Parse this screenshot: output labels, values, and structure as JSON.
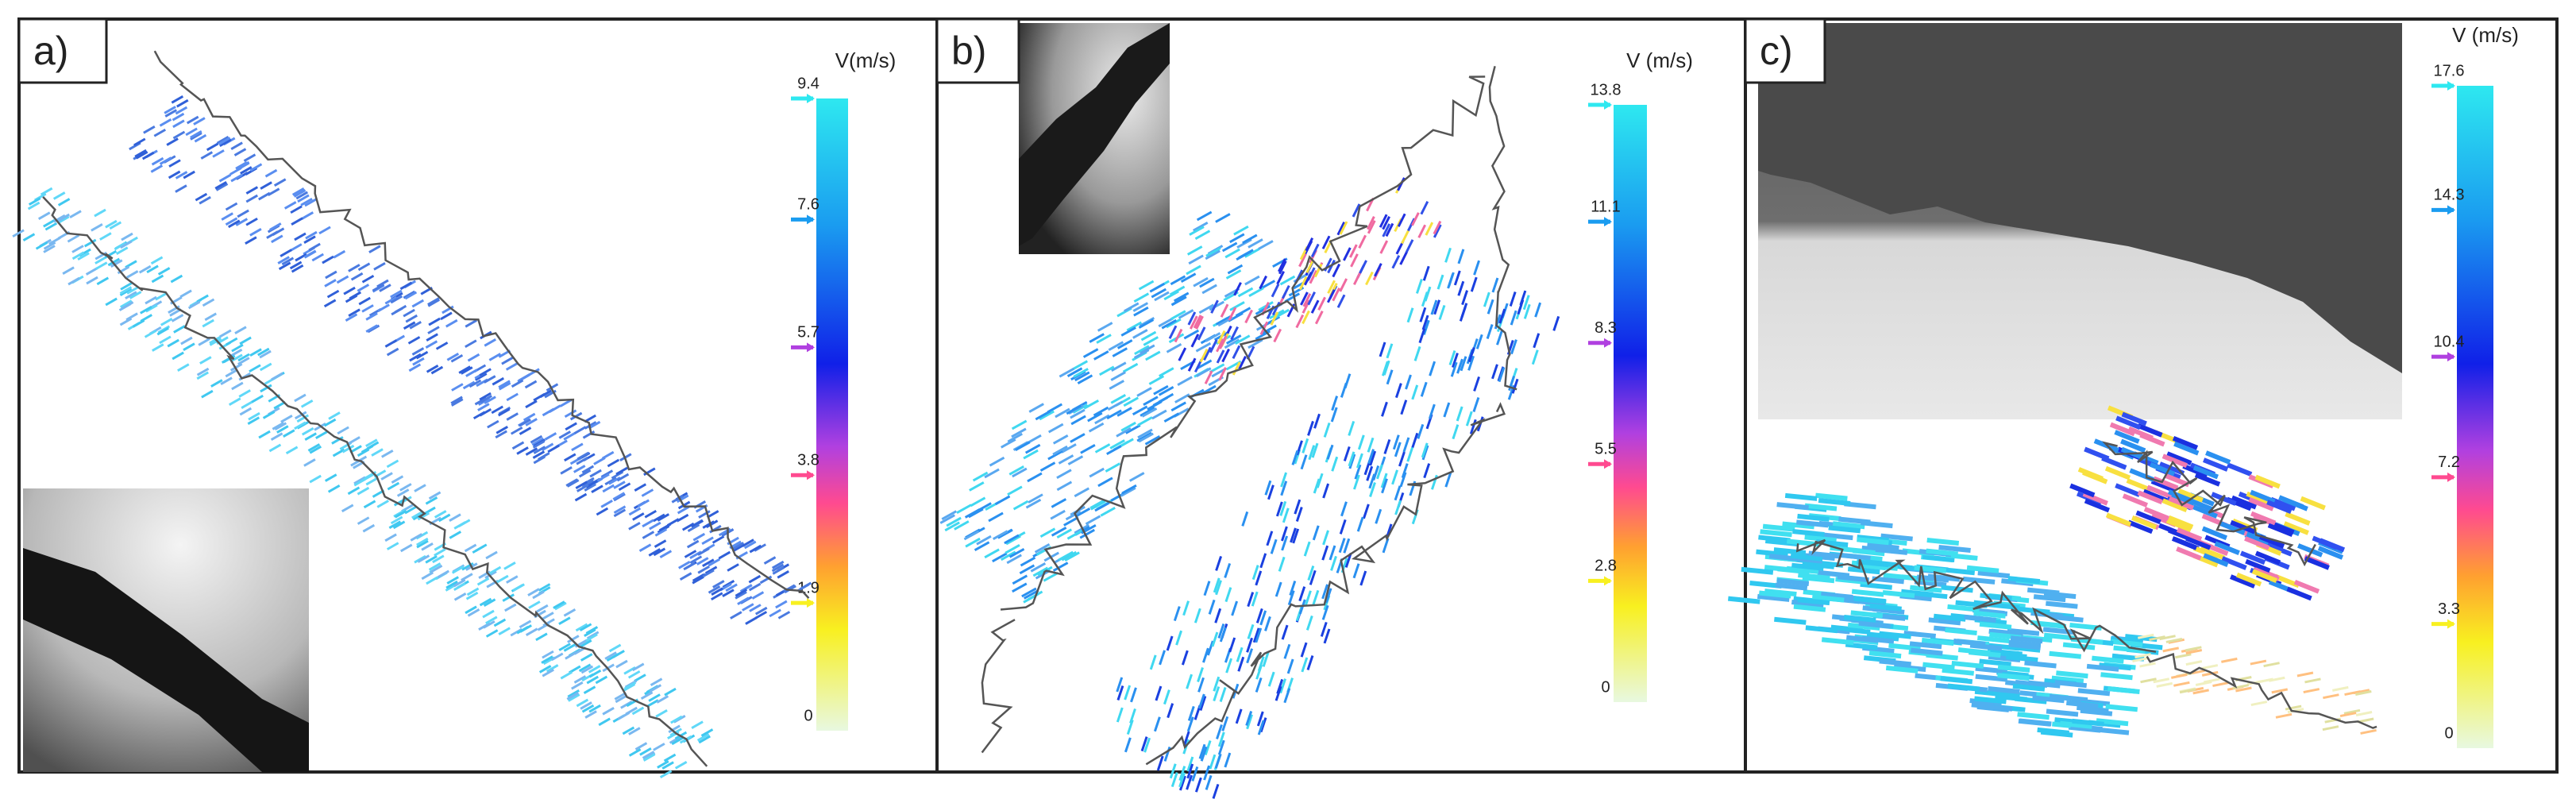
{
  "panels": [
    {
      "label": "a)",
      "legend_title": "V(m/s)",
      "ticks": [
        9.4,
        7.6,
        5.7,
        3.8,
        1.9,
        0
      ]
    },
    {
      "label": "b)",
      "legend_title": "V (m/s)",
      "ticks": [
        13.8,
        11.1,
        8.3,
        5.5,
        2.8,
        0
      ]
    },
    {
      "label": "c)",
      "legend_title": "V (m/s)",
      "ticks": [
        17.6,
        14.3,
        10.4,
        7.2,
        3.3,
        0
      ]
    }
  ]
}
